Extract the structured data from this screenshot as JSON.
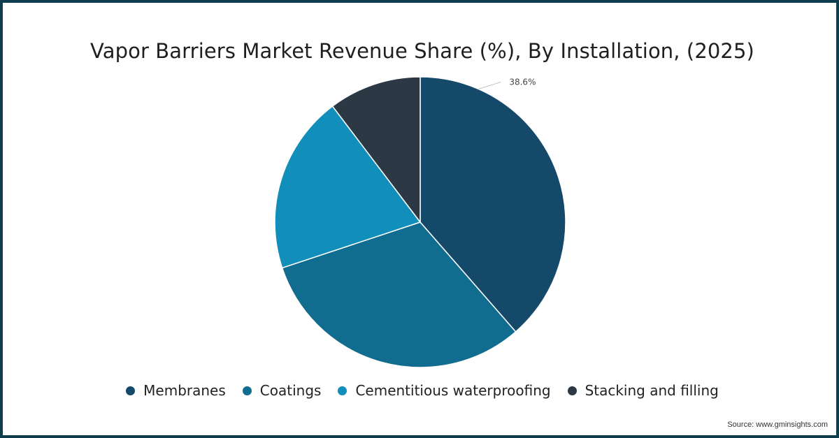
{
  "chart_data": {
    "type": "pie",
    "title": "Vapor Barriers Market Revenue Share (%), By Installation, (2025)",
    "categories": [
      "Membranes",
      "Coatings",
      "Cementitious waterproofing",
      "Stacking and filling"
    ],
    "values": [
      38.6,
      31.3,
      19.8,
      10.3
    ],
    "colors": [
      "#15496a",
      "#116d8f",
      "#118fba",
      "#2c3944"
    ],
    "data_labels": [
      {
        "category": "Membranes",
        "text": "38.6%"
      }
    ],
    "legend_position": "bottom"
  },
  "source": "Source: www.gminsights.com"
}
